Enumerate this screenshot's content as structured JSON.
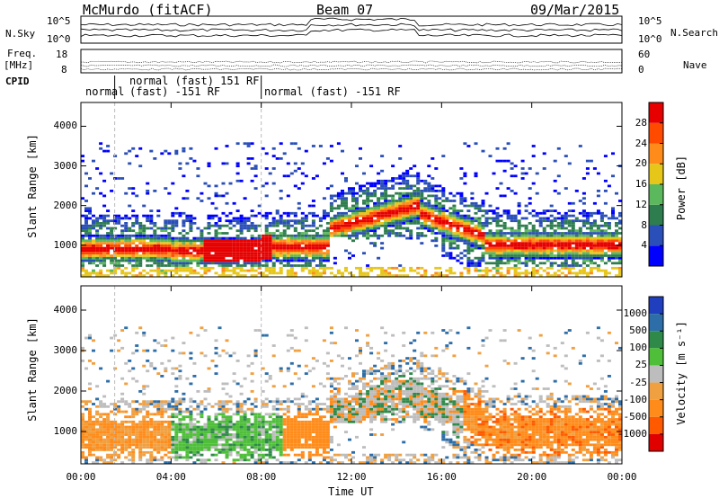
{
  "header": {
    "site": "McMurdo (fitACF)",
    "beam": "Beam 07",
    "date": "09/Mar/2015"
  },
  "side_labels": {
    "nsky": "N.Sky",
    "freq": "Freq.",
    "freq_unit": "[MHz]",
    "cpid": "CPID",
    "nsearch": "N.Search",
    "nave": "Nave"
  },
  "noise_axis": {
    "left_top": "10^5",
    "left_bottom": "10^0",
    "right_top": "10^5",
    "right_bottom": "10^0"
  },
  "freq_axis": {
    "left_ticks": [
      "18",
      "8"
    ],
    "right_ticks": [
      "60",
      "0"
    ]
  },
  "cpid_segments": [
    {
      "label": "normal",
      "t0": 0.0,
      "t1": 1.5
    },
    {
      "label": "normal (fast) 151 RF",
      "t0": 1.5,
      "t1": 6.5
    },
    {
      "label": "(fast) -151 RF",
      "t0": 1.5,
      "t1": 8.0
    },
    {
      "label": "normal (fast) -151 RF",
      "t0": 8.0,
      "t1": 24.0
    }
  ],
  "chart_data": [
    {
      "type": "heatmap",
      "quantity": "Power",
      "ylabel": "Slant Range [km]",
      "xlabel": "Time UT",
      "xlim": [
        0,
        24
      ],
      "ylim": [
        200,
        4600
      ],
      "y_ticks": [
        "1000",
        "2000",
        "3000",
        "4000"
      ],
      "x_ticks": [
        "00:00",
        "04:00",
        "08:00",
        "12:00",
        "16:00",
        "20:00",
        "00:00"
      ],
      "colorbar": {
        "label": "Power [dB]",
        "ticks": [
          "4",
          "8",
          "12",
          "16",
          "20",
          "24",
          "28"
        ],
        "colors": [
          "#0000ff",
          "#2b4fb8",
          "#2e7d4f",
          "#5cb85c",
          "#e6c619",
          "#ff8c1a",
          "#ff4a00",
          "#e60000"
        ]
      }
    },
    {
      "type": "heatmap",
      "quantity": "Velocity",
      "ylabel": "Slant Range [km]",
      "xlabel": "Time UT",
      "xlim": [
        0,
        24
      ],
      "ylim": [
        200,
        4600
      ],
      "y_ticks": [
        "1000",
        "2000",
        "3000",
        "4000"
      ],
      "x_ticks": [
        "00:00",
        "04:00",
        "08:00",
        "12:00",
        "16:00",
        "20:00",
        "00:00"
      ],
      "colorbar": {
        "label": "Velocity [m s⁻¹]",
        "ticks": [
          "1000",
          "500",
          "100",
          "25",
          "-25",
          "-100",
          "-500",
          "-1000"
        ],
        "colors": [
          "#1f3fbf",
          "#2e6ea8",
          "#2f8a4a",
          "#4fbf3a",
          "#bdbdbd",
          "#f0a040",
          "#ff8c1a",
          "#ff5a00",
          "#e00000"
        ]
      }
    }
  ],
  "xaxis_title": "Time UT"
}
